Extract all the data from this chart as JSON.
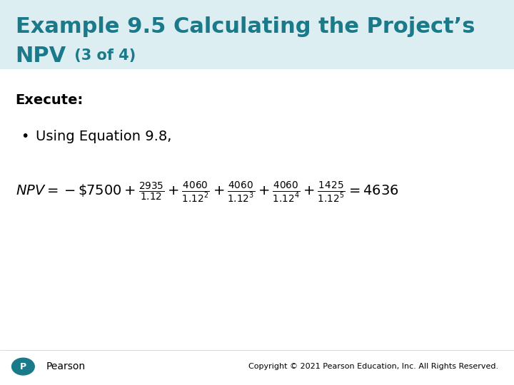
{
  "title_line1": "Example 9.5 Calculating the Project’s",
  "title_line2": "NPV",
  "title_suffix": " (3 of 4)",
  "title_color": "#1a7a8a",
  "execute_label": "Execute:",
  "bullet_text": "Using Equation 9.8,",
  "copyright_text": "Copyright © 2021 Pearson Education, Inc. All Rights Reserved.",
  "pearson_color": "#1a7a8a",
  "bg_color": "#ffffff",
  "text_color": "#000000",
  "header_bg_color": "#ddeef2"
}
